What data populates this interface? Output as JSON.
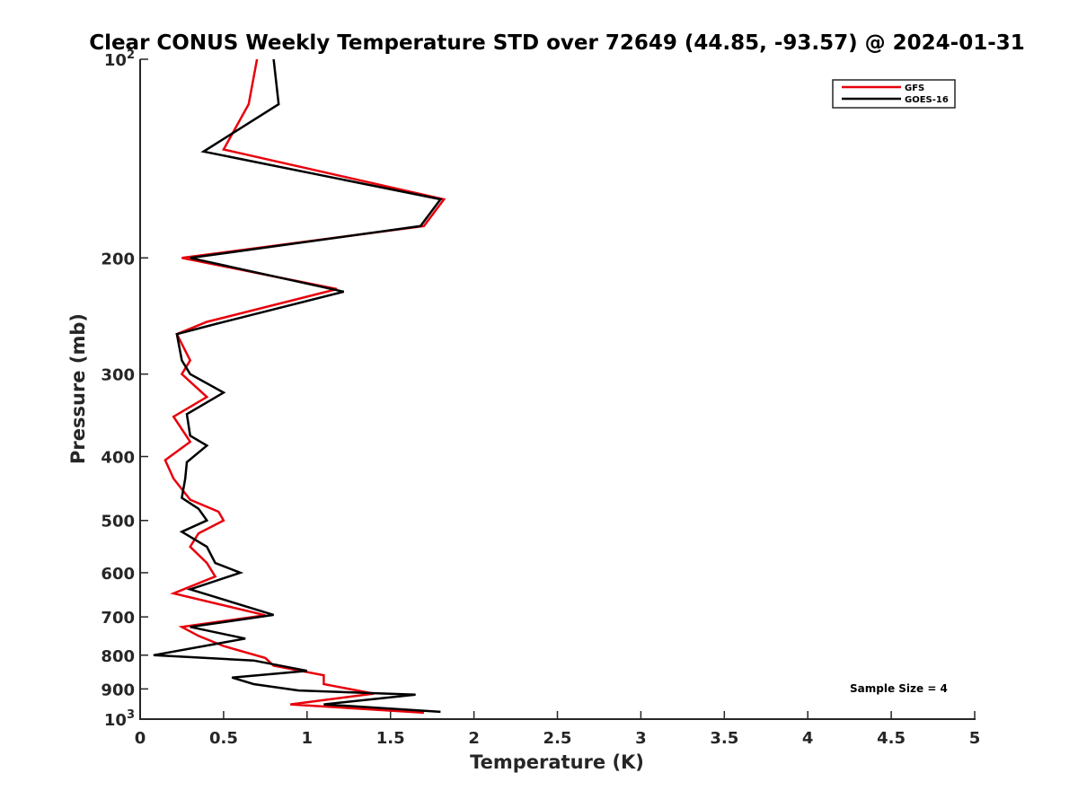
{
  "chart_data": {
    "type": "line",
    "title": "Clear CONUS Weekly Temperature STD over 72649 (44.85, -93.57) @ 2024-01-31",
    "xlabel": "Temperature (K)",
    "ylabel": "Pressure (mb)",
    "xlim": [
      0,
      5
    ],
    "ylim": [
      100,
      1000
    ],
    "yscale": "log",
    "y_reversed": true,
    "grid": false,
    "legend_position": "top-right",
    "x_ticks": [
      "0",
      "0.5",
      "1",
      "1.5",
      "2",
      "2.5",
      "3",
      "3.5",
      "4",
      "4.5",
      "5"
    ],
    "y_ticks": [
      {
        "value": 100,
        "label": "10",
        "sup": "2"
      },
      {
        "value": 200,
        "label": "200",
        "sup": ""
      },
      {
        "value": 300,
        "label": "300",
        "sup": ""
      },
      {
        "value": 400,
        "label": "400",
        "sup": ""
      },
      {
        "value": 500,
        "label": "500",
        "sup": ""
      },
      {
        "value": 600,
        "label": "600",
        "sup": ""
      },
      {
        "value": 700,
        "label": "700",
        "sup": ""
      },
      {
        "value": 800,
        "label": "800",
        "sup": ""
      },
      {
        "value": 900,
        "label": "900",
        "sup": ""
      },
      {
        "value": 1000,
        "label": "10",
        "sup": "3"
      }
    ],
    "series": [
      {
        "name": "GFS",
        "color": "#e8000b",
        "points": [
          [
            0.7,
            100
          ],
          [
            0.65,
            117
          ],
          [
            0.5,
            137
          ],
          [
            1.82,
            163
          ],
          [
            1.7,
            179
          ],
          [
            0.25,
            200
          ],
          [
            1.18,
            223
          ],
          [
            0.4,
            250
          ],
          [
            0.22,
            261
          ],
          [
            0.3,
            286
          ],
          [
            0.25,
            300
          ],
          [
            0.4,
            325
          ],
          [
            0.2,
            348
          ],
          [
            0.3,
            380
          ],
          [
            0.15,
            405
          ],
          [
            0.2,
            432
          ],
          [
            0.3,
            465
          ],
          [
            0.47,
            485
          ],
          [
            0.5,
            500
          ],
          [
            0.35,
            523
          ],
          [
            0.3,
            548
          ],
          [
            0.4,
            580
          ],
          [
            0.45,
            608
          ],
          [
            0.2,
            645
          ],
          [
            0.75,
            696
          ],
          [
            0.25,
            725
          ],
          [
            0.35,
            748
          ],
          [
            0.5,
            775
          ],
          [
            0.75,
            808
          ],
          [
            0.8,
            830
          ],
          [
            1.1,
            858
          ],
          [
            1.1,
            885
          ],
          [
            1.4,
            915
          ],
          [
            0.9,
            950
          ],
          [
            1.7,
            978
          ]
        ]
      },
      {
        "name": "GOES-16",
        "color": "#000000",
        "points": [
          [
            0.8,
            100
          ],
          [
            0.83,
            117
          ],
          [
            0.38,
            138
          ],
          [
            1.8,
            163
          ],
          [
            1.68,
            179
          ],
          [
            0.3,
            200
          ],
          [
            1.22,
            225
          ],
          [
            0.45,
            252
          ],
          [
            0.22,
            261
          ],
          [
            0.25,
            286
          ],
          [
            0.3,
            300
          ],
          [
            0.5,
            320
          ],
          [
            0.28,
            345
          ],
          [
            0.3,
            372
          ],
          [
            0.4,
            385
          ],
          [
            0.28,
            408
          ],
          [
            0.27,
            432
          ],
          [
            0.25,
            462
          ],
          [
            0.35,
            480
          ],
          [
            0.4,
            500
          ],
          [
            0.25,
            520
          ],
          [
            0.4,
            548
          ],
          [
            0.45,
            580
          ],
          [
            0.6,
            600
          ],
          [
            0.3,
            636
          ],
          [
            0.8,
            695
          ],
          [
            0.3,
            725
          ],
          [
            0.63,
            755
          ],
          [
            0.08,
            800
          ],
          [
            0.68,
            815
          ],
          [
            1.0,
            845
          ],
          [
            0.55,
            865
          ],
          [
            0.68,
            885
          ],
          [
            0.95,
            905
          ],
          [
            1.65,
            918
          ],
          [
            1.1,
            950
          ],
          [
            1.8,
            975
          ]
        ]
      }
    ],
    "annotations": [
      "Sample Size = 4"
    ]
  }
}
